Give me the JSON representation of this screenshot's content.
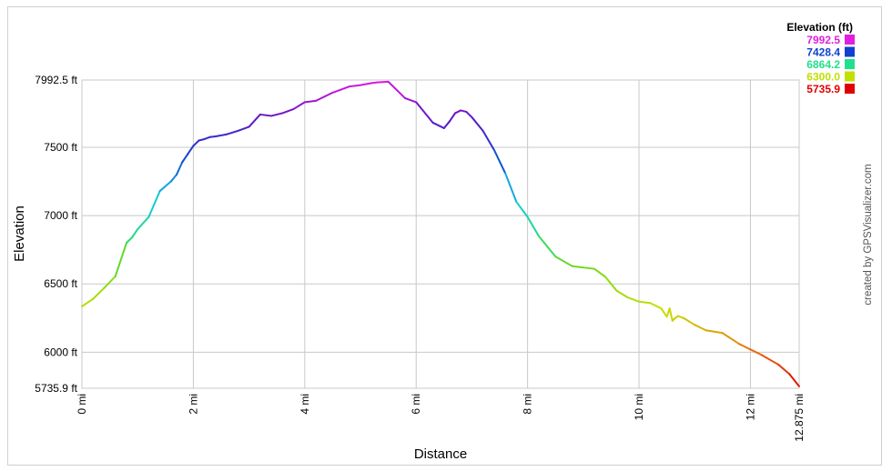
{
  "chart_data": {
    "type": "line",
    "xlabel": "Distance",
    "ylabel": "Elevation",
    "x_unit": "mi",
    "y_unit": "ft",
    "xlim": [
      0,
      12.875
    ],
    "ylim": [
      5735.9,
      7992.5
    ],
    "x_ticks": [
      0,
      2,
      4,
      6,
      8,
      10,
      12,
      12.875
    ],
    "x_tick_labels": [
      "0 mi",
      "2 mi",
      "4 mi",
      "6 mi",
      "8 mi",
      "10 mi",
      "12 mi",
      "12.875 mi"
    ],
    "y_ticks": [
      5735.9,
      6000,
      6500,
      7000,
      7500,
      7992.5
    ],
    "y_tick_labels": [
      "5735.9 ft",
      "6000 ft",
      "6500 ft",
      "7000 ft",
      "7500 ft",
      "7992.5 ft"
    ],
    "grid": true,
    "colored_by": "elevation",
    "legend": {
      "title": "Elevation (ft)",
      "placement": "top-right",
      "entries": [
        {
          "label": "7992.5",
          "color": "#e020e0"
        },
        {
          "label": "7428.4",
          "color": "#1040d0"
        },
        {
          "label": "6864.2",
          "color": "#20e090"
        },
        {
          "label": "6300.0",
          "color": "#c0e000"
        },
        {
          "label": "5735.9",
          "color": "#e00000"
        }
      ]
    },
    "series": [
      {
        "x": [
          0,
          0.2,
          0.4,
          0.6,
          0.8,
          0.9,
          1.0,
          1.2,
          1.4,
          1.6,
          1.7,
          1.8,
          1.9,
          2.0,
          2.1,
          2.2,
          2.3,
          2.4,
          2.6,
          2.8,
          3.0,
          3.2,
          3.4,
          3.6,
          3.8,
          4.0,
          4.2,
          4.5,
          4.8,
          5.0,
          5.2,
          5.3,
          5.5,
          5.8,
          6.0,
          6.3,
          6.5,
          6.6,
          6.7,
          6.8,
          6.9,
          7.0,
          7.2,
          7.4,
          7.6,
          7.8,
          8.0,
          8.2,
          8.5,
          8.8,
          9.0,
          9.2,
          9.4,
          9.6,
          9.8,
          10.0,
          10.2,
          10.4,
          10.5,
          10.55,
          10.6,
          10.65,
          10.7,
          10.8,
          11.0,
          11.2,
          11.5,
          11.8,
          12.0,
          12.2,
          12.5,
          12.7,
          12.875
        ],
        "y": [
          6335,
          6390,
          6470,
          6555,
          6800,
          6840,
          6900,
          6990,
          7180,
          7250,
          7300,
          7390,
          7450,
          7510,
          7550,
          7560,
          7575,
          7580,
          7595,
          7620,
          7650,
          7740,
          7730,
          7750,
          7780,
          7830,
          7840,
          7900,
          7945,
          7955,
          7970,
          7975,
          7980,
          7860,
          7830,
          7680,
          7640,
          7690,
          7750,
          7770,
          7760,
          7720,
          7620,
          7480,
          7310,
          7100,
          6990,
          6850,
          6700,
          6630,
          6620,
          6610,
          6550,
          6450,
          6400,
          6370,
          6360,
          6320,
          6260,
          6320,
          6230,
          6250,
          6265,
          6250,
          6200,
          6160,
          6140,
          6060,
          6020,
          5980,
          5910,
          5840,
          5750
        ]
      }
    ]
  },
  "credit": "created by GPSVisualizer.com"
}
